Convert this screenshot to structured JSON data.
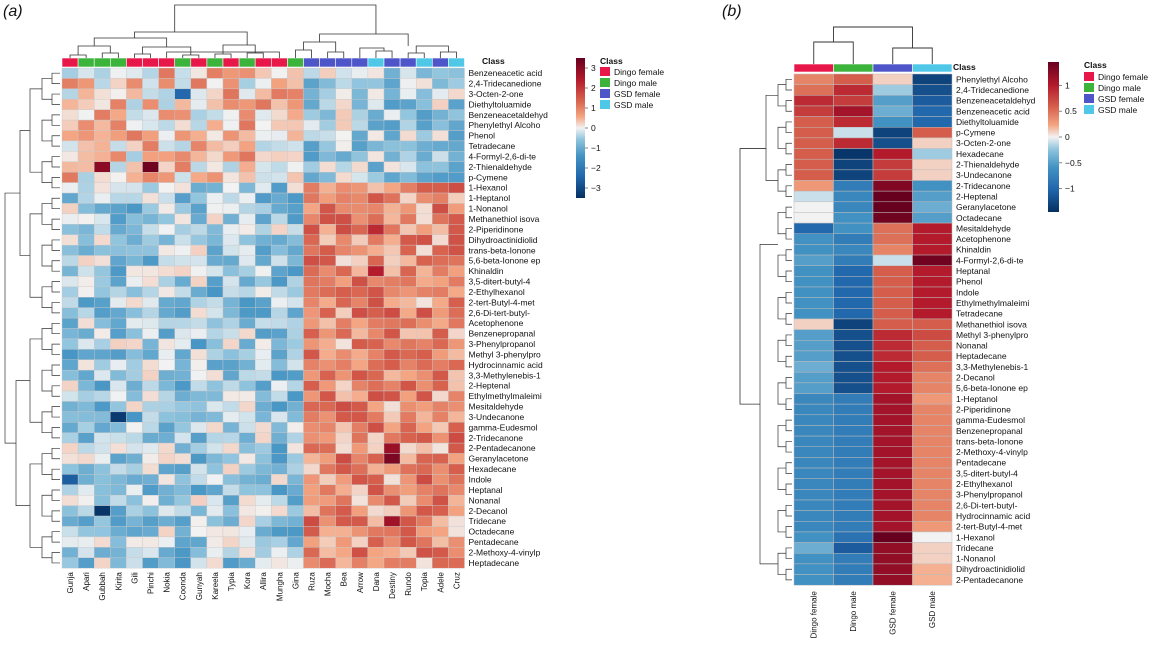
{
  "chart_data": [
    {
      "type": "heatmap",
      "panel_label": "(a)",
      "class_header": "Class",
      "legend_title": "Class",
      "classes": [
        {
          "name": "Dingo female",
          "color": "#e8174a"
        },
        {
          "name": "Dingo male",
          "color": "#3cb43c"
        },
        {
          "name": "GSD female",
          "color": "#4d55c8"
        },
        {
          "name": "GSD male",
          "color": "#4fc8e8"
        }
      ],
      "colorbar": {
        "min": -3.5,
        "max": 3.5,
        "ticks": [
          3,
          2,
          1,
          0,
          -1,
          -2,
          -3
        ],
        "tick_labels": [
          "3",
          "2",
          "1",
          "0",
          "−1",
          "−2",
          "−3"
        ]
      },
      "columns": [
        "Gunja",
        "Apari",
        "Gubbah",
        "Kirita",
        "Gili",
        "Pinchi",
        "Nokia",
        "Coonda",
        "Gunyah",
        "Kareela",
        "Typia",
        "Kora",
        "Allira",
        "Mungha",
        "Gina",
        "Ruza",
        "Mocha",
        "Bea",
        "Arrow",
        "Dana",
        "Destiny",
        "Rundo",
        "Topia",
        "Adele",
        "Cruz"
      ],
      "column_classes": [
        0,
        1,
        1,
        1,
        0,
        0,
        0,
        1,
        0,
        1,
        0,
        1,
        0,
        0,
        1,
        2,
        2,
        2,
        2,
        3,
        2,
        2,
        3,
        2,
        3
      ],
      "rows": [
        "Benzeneacetic acid",
        "2,4-Tridecanedione",
        "3-Octen-2-one",
        "Diethyltoluamide",
        "Benzeneacetaldehyd",
        "Phenylethyl Alcoho",
        "Phenol",
        "Tetradecane",
        "4-Formyl-2,6-di-te",
        "2-Thienaldehyde",
        "p-Cymene",
        "1-Hexanol",
        "1-Heptanol",
        "1-Nonanol",
        "Methanethiol isova",
        "2-Piperidinone",
        "Dihydroactinidiolid",
        "trans-beta-Ionone",
        "5,6-beta-Ionone ep",
        "Khinaldin",
        "3,5-ditert-butyl-4",
        "2-Ethylhexanol",
        "2-tert-Butyl-4-met",
        "2,6-Di-tert-butyl-",
        "Acetophenone",
        "Benzenepropanal",
        "3-Phenylpropanol",
        "Methyl 3-phenylpro",
        "Hydrocinnamic acid",
        "3,3-Methylenebis-1",
        "2-Heptenal",
        "Ethylmethylmaleimi",
        "Mesitaldehyde",
        "3-Undecanone",
        "gamma-Eudesmol",
        "2-Tridecanone",
        "2-Pentadecanone",
        "Geranylacetone",
        "Hexadecane",
        "Indole",
        "Heptanal",
        "Nonanal",
        "2-Decanol",
        "Tridecane",
        "Octadecane",
        "Pentadecane",
        "2-Methoxy-4-vinylp",
        "Heptadecane"
      ]
    },
    {
      "type": "heatmap",
      "panel_label": "(b)",
      "class_header": "Class",
      "legend_title": "Class",
      "classes": [
        {
          "name": "Dingo female",
          "color": "#e8174a"
        },
        {
          "name": "Dingo male",
          "color": "#3cb43c"
        },
        {
          "name": "GSD female",
          "color": "#4d55c8"
        },
        {
          "name": "GSD male",
          "color": "#4fc8e8"
        }
      ],
      "colorbar": {
        "min": -1.45,
        "max": 1.45,
        "ticks": [
          1,
          0.5,
          0,
          -0.5,
          -1
        ],
        "tick_labels": [
          "1",
          "0.5",
          "0",
          "−0.5",
          "−1"
        ]
      },
      "columns": [
        "Dingo female",
        "Dingo male",
        "GSD female",
        "GSD male"
      ],
      "column_classes": [
        0,
        1,
        2,
        3
      ],
      "rows": [
        "Phenylethyl Alcoho",
        "2,4-Tridecanedione",
        "Benzeneacetaldehyd",
        "Benzeneacetic acid",
        "Diethyltoluamide",
        "p-Cymene",
        "3-Octen-2-one",
        "Hexadecane",
        "2-Thienaldehyde",
        "3-Undecanone",
        "2-Tridecanone",
        "2-Heptenal",
        "Geranylacetone",
        "Octadecane",
        "Mesitaldehyde",
        "Acetophenone",
        "Khinaldin",
        "4-Formyl-2,6-di-te",
        "Heptanal",
        "Phenol",
        "Indole",
        "Ethylmethylmaleimi",
        "Tetradecane",
        "Methanethiol isova",
        "Methyl 3-phenylpro",
        "Nonanal",
        "Heptadecane",
        "3,3-Methylenebis-1",
        "2-Decanol",
        "5,6-beta-Ionone ep",
        "1-Heptanol",
        "2-Piperidinone",
        "gamma-Eudesmol",
        "Benzenepropanal",
        "trans-beta-Ionone",
        "2-Methoxy-4-vinylp",
        "Pentadecane",
        "3,5-ditert-butyl-4",
        "2-Ethylhexanol",
        "3-Phenylpropanol",
        "2,6-Di-tert-butyl-",
        "Hydrocinnamic acid",
        "2-tert-Butyl-4-met",
        "1-Hexanol",
        "Tridecane",
        "1-Nonanol",
        "Dihydroactinidiolid",
        "2-Pentadecanone"
      ],
      "values": [
        [
          0.4,
          0.6,
          0.1,
          -1.3
        ],
        [
          0.5,
          0.9,
          -0.2,
          -1.2
        ],
        [
          0.9,
          0.8,
          -0.5,
          -1.1
        ],
        [
          0.8,
          1.1,
          -0.4,
          -1.0
        ],
        [
          0.6,
          0.9,
          -0.6,
          -1.0
        ],
        [
          0.6,
          -0.1,
          -1.3,
          0.6
        ],
        [
          0.6,
          0.9,
          -1.2,
          0.1
        ],
        [
          0.6,
          -1.4,
          1.0,
          -0.2
        ],
        [
          0.6,
          -1.3,
          0.8,
          0.1
        ],
        [
          0.6,
          -1.3,
          0.8,
          0.1
        ],
        [
          0.3,
          -0.8,
          1.3,
          -0.6
        ],
        [
          -0.1,
          -0.7,
          1.45,
          -0.5
        ],
        [
          0.0,
          -0.7,
          1.45,
          -0.4
        ],
        [
          0.0,
          -0.6,
          1.4,
          -0.5
        ],
        [
          -1.0,
          -0.6,
          0.5,
          1.0
        ],
        [
          -0.6,
          -0.8,
          0.5,
          1.0
        ],
        [
          -0.6,
          -0.7,
          0.4,
          1.0
        ],
        [
          -0.5,
          -0.8,
          -0.1,
          1.4
        ],
        [
          -0.6,
          -1.0,
          0.6,
          1.0
        ],
        [
          -0.6,
          -1.0,
          0.6,
          1.0
        ],
        [
          -0.6,
          -1.0,
          0.6,
          1.0
        ],
        [
          -0.6,
          -1.0,
          0.6,
          1.0
        ],
        [
          -0.6,
          -1.0,
          0.6,
          1.0
        ],
        [
          0.1,
          -1.3,
          0.6,
          0.6
        ],
        [
          -0.5,
          -1.2,
          0.9,
          0.7
        ],
        [
          -0.5,
          -1.2,
          0.9,
          0.6
        ],
        [
          -0.5,
          -1.2,
          0.9,
          0.6
        ],
        [
          -0.4,
          -1.2,
          1.0,
          0.5
        ],
        [
          -0.5,
          -1.2,
          1.0,
          0.4
        ],
        [
          -0.5,
          -1.2,
          1.0,
          0.4
        ],
        [
          -0.7,
          -0.8,
          1.1,
          0.3
        ],
        [
          -0.7,
          -0.8,
          1.1,
          0.4
        ],
        [
          -0.7,
          -0.8,
          1.1,
          0.4
        ],
        [
          -0.7,
          -0.8,
          1.1,
          0.4
        ],
        [
          -0.7,
          -0.8,
          1.1,
          0.4
        ],
        [
          -0.7,
          -0.8,
          1.1,
          0.4
        ],
        [
          -0.7,
          -0.8,
          1.1,
          0.4
        ],
        [
          -0.7,
          -0.8,
          1.1,
          0.4
        ],
        [
          -0.7,
          -0.8,
          1.1,
          0.4
        ],
        [
          -0.7,
          -0.8,
          1.1,
          0.4
        ],
        [
          -0.7,
          -0.8,
          1.1,
          0.4
        ],
        [
          -0.7,
          -0.8,
          1.1,
          0.4
        ],
        [
          -0.7,
          -0.8,
          1.1,
          0.3
        ],
        [
          -0.6,
          -0.9,
          1.45,
          0.0
        ],
        [
          -0.4,
          -1.1,
          1.2,
          0.1
        ],
        [
          -0.6,
          -0.8,
          1.2,
          0.1
        ],
        [
          -0.6,
          -0.8,
          1.2,
          0.2
        ],
        [
          -0.6,
          -0.8,
          1.2,
          0.2
        ]
      ]
    }
  ]
}
